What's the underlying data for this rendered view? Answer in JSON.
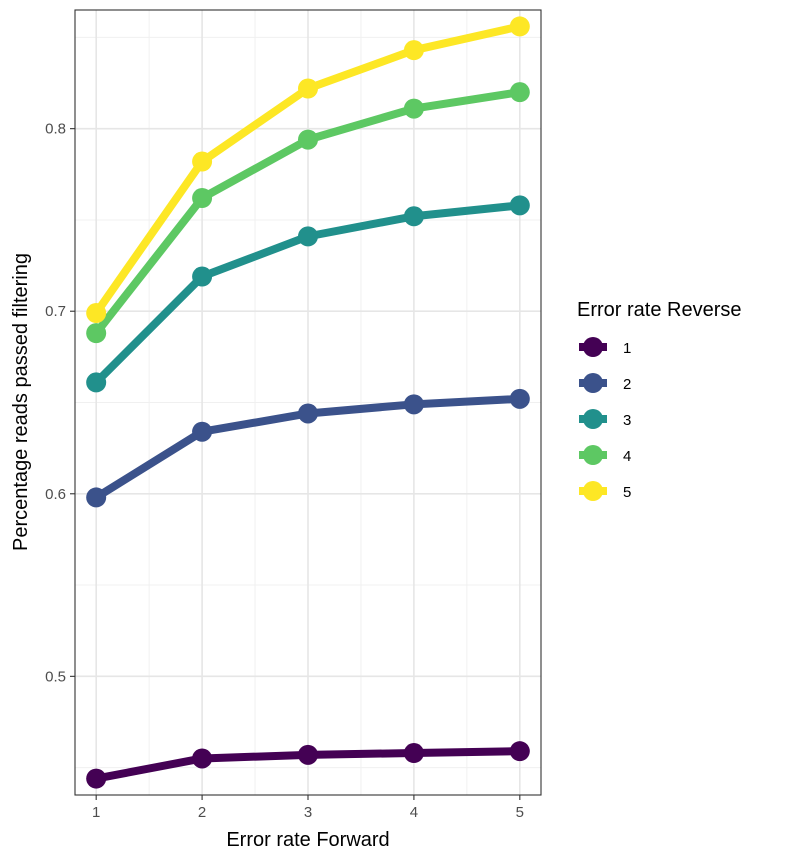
{
  "chart_data": {
    "type": "line",
    "xlabel": "Error rate Forward",
    "ylabel": "Percentage reads passed filtering",
    "x": [
      1,
      2,
      3,
      4,
      5
    ],
    "xticks": [
      "1",
      "2",
      "3",
      "4",
      "5"
    ],
    "yticks": [
      0.5,
      0.6,
      0.7,
      0.8
    ],
    "ytick_labels": [
      "0.5",
      "0.6",
      "0.7",
      "0.8"
    ],
    "xlim": [
      0.8,
      5.2
    ],
    "ylim": [
      0.435,
      0.865
    ],
    "grid": true,
    "legend": {
      "title": "Error rate Reverse",
      "position": "right"
    },
    "series": [
      {
        "name": "1",
        "color": "#440154",
        "values": [
          0.444,
          0.455,
          0.457,
          0.458,
          0.459
        ]
      },
      {
        "name": "2",
        "color": "#3b528b",
        "values": [
          0.598,
          0.634,
          0.644,
          0.649,
          0.652
        ]
      },
      {
        "name": "3",
        "color": "#21908c",
        "values": [
          0.661,
          0.719,
          0.741,
          0.752,
          0.758
        ]
      },
      {
        "name": "4",
        "color": "#5dc863",
        "values": [
          0.688,
          0.762,
          0.794,
          0.811,
          0.82
        ]
      },
      {
        "name": "5",
        "color": "#fde725",
        "values": [
          0.699,
          0.782,
          0.822,
          0.843,
          0.856
        ]
      }
    ]
  }
}
